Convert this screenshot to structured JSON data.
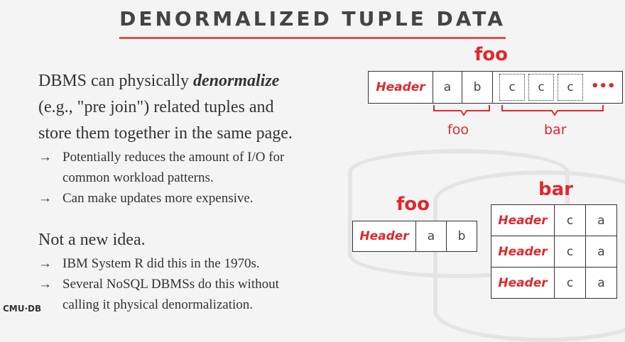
{
  "title": "DENORMALIZED TUPLE DATA",
  "bullets": {
    "main1_pre": "DBMS can physically ",
    "main1_em": "denormalize",
    "main1_line2": "(e.g., \"pre join\") related tuples and",
    "main1_line3": "store them together in the same page.",
    "arrow": "→",
    "sub1_line1": "Potentially reduces the amount of I/O for",
    "sub1_line2": "common workload patterns.",
    "sub2": "Can make updates more expensive.",
    "main2": "Not a new idea.",
    "sub3": "IBM System R did this in the 1970s.",
    "sub4_line1": "Several NoSQL DBMSs do this without",
    "sub4_line2": "calling it physical denormalization."
  },
  "diagram_top": {
    "label": "foo",
    "header": "Header",
    "a": "a",
    "b": "b",
    "c": "c",
    "ellipsis": "•••",
    "bracket_foo": "foo",
    "bracket_bar": "bar"
  },
  "diagram_foo": {
    "label": "foo",
    "header": "Header",
    "a": "a",
    "b": "b"
  },
  "diagram_bar": {
    "label": "bar",
    "rows": [
      {
        "header": "Header",
        "c": "c",
        "a": "a"
      },
      {
        "header": "Header",
        "c": "c",
        "a": "a"
      },
      {
        "header": "Header",
        "c": "c",
        "a": "a"
      }
    ]
  },
  "logo": "CMU·DB",
  "colors": {
    "accent": "#e0282e",
    "rule": "#d9534f"
  }
}
